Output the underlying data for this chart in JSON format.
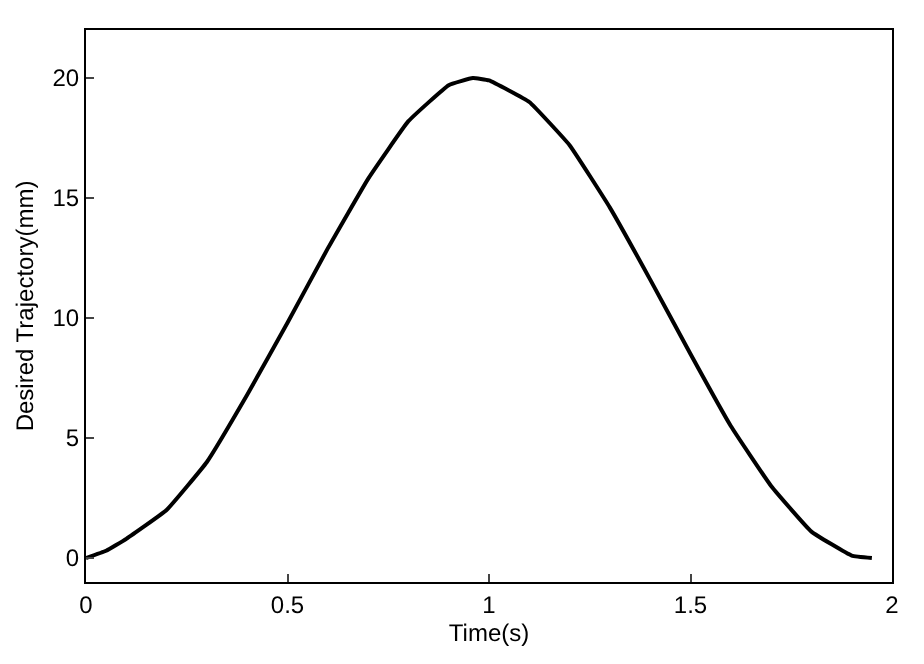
{
  "chart_data": {
    "type": "line",
    "xlabel": "Time(s)",
    "ylabel": "Desired Trajectory(mm)",
    "x": [
      0,
      0.05,
      0.1,
      0.2,
      0.3,
      0.4,
      0.5,
      0.6,
      0.7,
      0.8,
      0.9,
      0.96,
      1.0,
      1.1,
      1.2,
      1.3,
      1.4,
      1.5,
      1.6,
      1.7,
      1.8,
      1.9,
      1.95
    ],
    "series": [
      {
        "color": "#000000",
        "values": [
          0,
          0.3,
          0.8,
          2.0,
          4.0,
          6.8,
          9.8,
          12.9,
          15.8,
          18.2,
          19.7,
          20.0,
          19.9,
          19.0,
          17.2,
          14.6,
          11.6,
          8.5,
          5.5,
          3.0,
          1.1,
          0.1,
          0
        ]
      }
    ],
    "xlim": [
      0,
      2
    ],
    "xticks": [
      0,
      0.5,
      1,
      1.5,
      2
    ],
    "ylim": [
      -1,
      22
    ],
    "yticks": [
      0,
      5,
      10,
      15,
      20
    ],
    "legend": false,
    "marker": "none",
    "line_style": "solid"
  }
}
